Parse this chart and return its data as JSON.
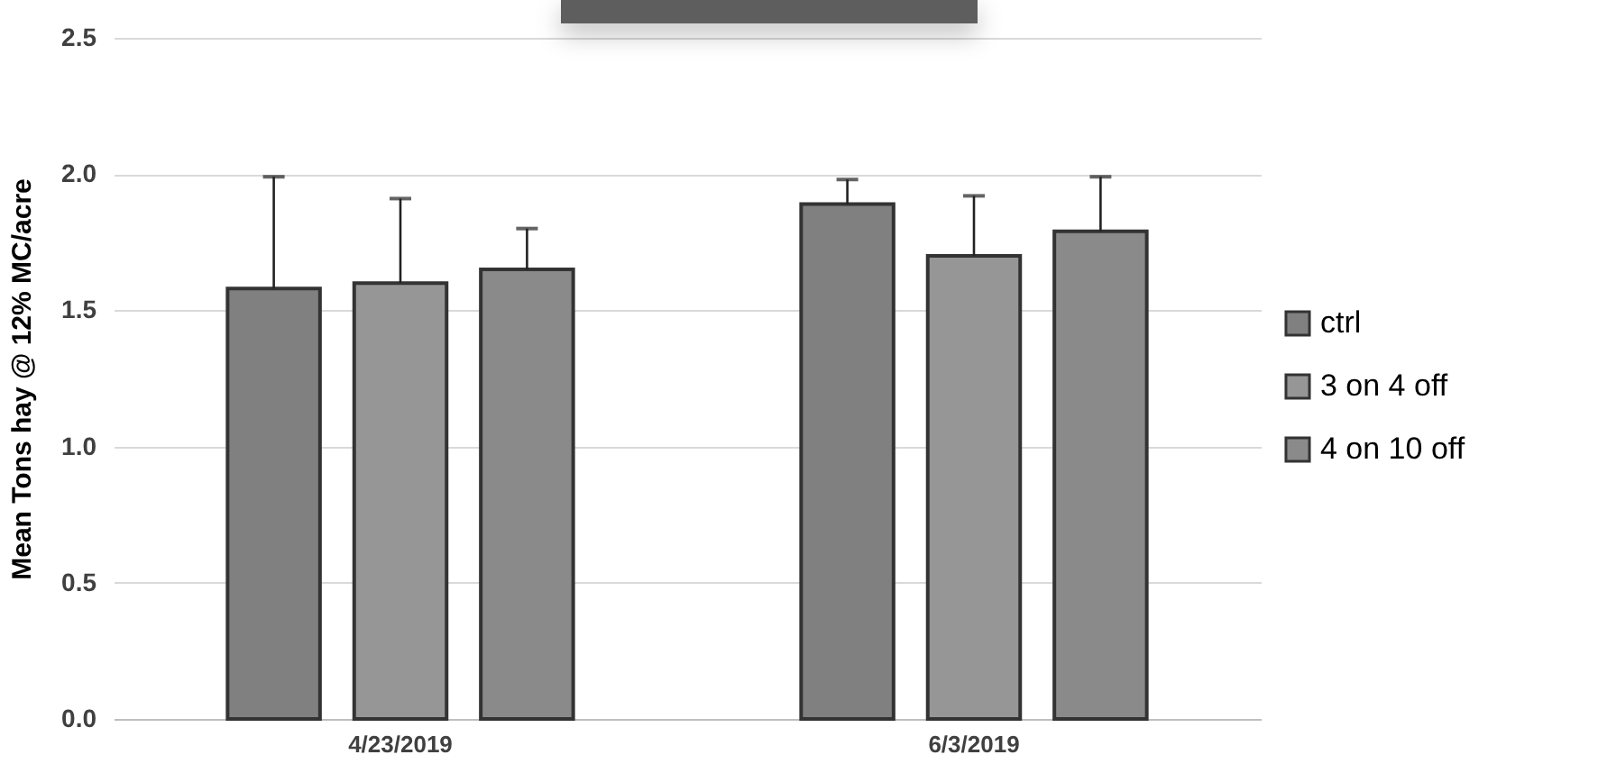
{
  "chart_data": {
    "type": "bar",
    "ylabel": "Mean Tons hay @ 12% MC/acre",
    "categories": [
      "4/23/2019",
      "6/3/2019"
    ],
    "series": [
      {
        "name": "ctrl",
        "color": "#808080",
        "values": [
          1.58,
          1.89
        ],
        "errors": [
          [
            1.58,
            1.99
          ],
          [
            1.89,
            1.98
          ]
        ]
      },
      {
        "name": "3 on 4 off",
        "color": "#969696",
        "values": [
          1.6,
          1.7
        ],
        "errors": [
          [
            1.6,
            1.91
          ],
          [
            1.7,
            1.92
          ]
        ]
      },
      {
        "name": "4 on 10 off",
        "color": "#8a8a8a",
        "values": [
          1.65,
          1.79
        ],
        "errors": [
          [
            1.65,
            1.8
          ],
          [
            1.79,
            1.99
          ]
        ]
      }
    ],
    "ylim": [
      0,
      2.5
    ],
    "yticks": [
      {
        "value": 0,
        "label": "0.0"
      },
      0.5,
      {
        "value": 1,
        "label": "1.0"
      },
      1.5,
      {
        "value": 2,
        "label": "2.0"
      },
      2.5
    ],
    "grid": "y",
    "legend": "right"
  }
}
